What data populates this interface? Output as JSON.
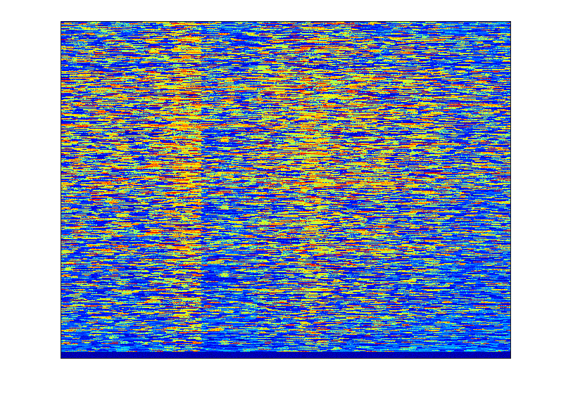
{
  "chart_data": {
    "type": "heatmap",
    "colormap": "jet",
    "axes_visible": false,
    "grid": false,
    "legend": "none",
    "grid_size": [
      640,
      480
    ],
    "value_range": [
      0,
      1
    ],
    "colors": {
      "low": "#00008f",
      "mid_low": "#0060ff",
      "mid": "#20e0e0",
      "mid_high": "#f0f000",
      "high": "#c01000"
    },
    "column_bands": [
      {
        "x": [
          0,
          120
        ],
        "level": 0.45
      },
      {
        "x": [
          120,
          160
        ],
        "level": 0.55
      },
      {
        "x": [
          160,
          200
        ],
        "level": 0.75
      },
      {
        "x": [
          200,
          280
        ],
        "level": 0.35
      },
      {
        "x": [
          280,
          340
        ],
        "level": 0.55
      },
      {
        "x": [
          340,
          380
        ],
        "level": 0.7
      },
      {
        "x": [
          380,
          450
        ],
        "level": 0.55
      },
      {
        "x": [
          450,
          540
        ],
        "level": 0.45
      },
      {
        "x": [
          540,
          640
        ],
        "level": 0.3
      }
    ],
    "row_bands": [
      {
        "y": [
          0,
          20
        ],
        "level": 0.35
      },
      {
        "y": [
          20,
          70
        ],
        "level": 0.5
      },
      {
        "y": [
          70,
          240
        ],
        "level": 0.62
      },
      {
        "y": [
          240,
          330
        ],
        "level": 0.5
      },
      {
        "y": [
          330,
          420
        ],
        "level": 0.42
      },
      {
        "y": [
          420,
          460
        ],
        "level": 0.28
      },
      {
        "y": [
          460,
          480
        ],
        "level": 0.05
      }
    ]
  }
}
